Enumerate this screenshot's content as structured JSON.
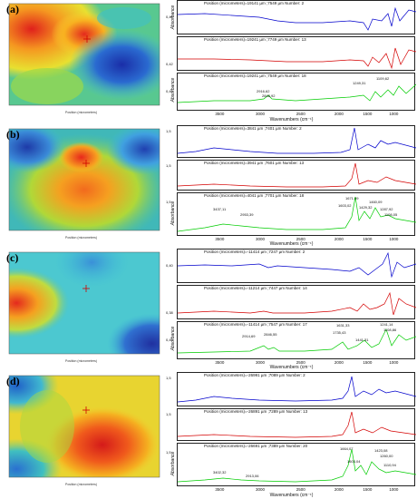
{
  "panels": [
    {
      "label": "(a)",
      "map": {
        "x_label": "Position (micrometers)",
        "y_label": "Position (micrometers)"
      },
      "spectra": [
        {
          "position": "Position (micrometers)=19141 µm ;7549 µm Number: 2",
          "color": "#0000cc",
          "ytick": "0,46"
        },
        {
          "position": "Position (micrometers)=19241 µm ;7749 µm Number: 13",
          "color": "#d40000",
          "ytick": "0,42"
        },
        {
          "position": "Position (micrometers)=19241 µm ;7549 µm Number: 18",
          "color": "#00cc00",
          "ytick": "0,40"
        }
      ],
      "peaks": [
        "2916,62",
        "2848,92",
        "1249,31",
        "1109,62"
      ],
      "x_ticks": [
        "3500",
        "3000",
        "2500",
        "2000",
        "1500",
        "1000"
      ],
      "x_label": "Wavenumbers (cm⁻¹)",
      "y_label": "Absorbance"
    },
    {
      "label": "(b)",
      "map": {
        "x_label": "Position (micrometers)",
        "y_label": "Position (micrometers)"
      },
      "spectra": [
        {
          "position": "Position (micrometers)=3841 µm ;7401 µm Number: 2",
          "color": "#0000cc",
          "ytick": "1,5"
        },
        {
          "position": "Position (micrometers)=3941 µm ;7601 µm Number: 13",
          "color": "#d40000",
          "ytick": "1,5"
        },
        {
          "position": "Position (micrometers)=4041 µm ;7701 µm Number: 18",
          "color": "#00cc00",
          "ytick": "1,5"
        }
      ],
      "peaks": [
        "3437,11",
        "2953,39",
        "1671,09",
        "1603,02",
        "1460,09",
        "1429,32",
        "1287,92",
        "1108,05"
      ],
      "x_ticks": [
        "3500",
        "3000",
        "2500",
        "2000",
        "1500",
        "1000"
      ],
      "x_label": "Wavenumbers (cm⁻¹)",
      "y_label": "Absorbance"
    },
    {
      "label": "(c)",
      "map": {
        "x_label": "Position (micrometers)",
        "y_label": "Position (micrometers)"
      },
      "spectra": [
        {
          "position": "Position (micrometers)=-11414 µm ;7247 µm Number: 2",
          "color": "#0000cc",
          "ytick": "0,40"
        },
        {
          "position": "Position (micrometers)=-11214 µm ;7447 µm Number: 14",
          "color": "#d40000",
          "ytick": "0,38"
        },
        {
          "position": "Position (micrometers)=-11414 µm ;7547 µm Number: 17",
          "color": "#00cc00",
          "ytick": "0,40"
        }
      ],
      "peaks": [
        "2914,69",
        "2846,55",
        "1631,33",
        "1735,43",
        "1441,31",
        "1241,14",
        "1108,86"
      ],
      "x_ticks": [
        "3500",
        "3000",
        "2500",
        "2000",
        "1500",
        "1000"
      ],
      "x_label": "Wavenumbers (cm⁻¹)",
      "y_label": "Absorbance"
    },
    {
      "label": "(d)",
      "map": {
        "x_label": "Position (micrometers)",
        "y_label": "Position (micrometers)"
      },
      "spectra": [
        {
          "position": "Position (micrometers)=-26991 µm ;7089 µm Number: 2",
          "color": "#0000cc",
          "ytick": "1,5"
        },
        {
          "position": "Position (micrometers)=-26891 µm ;7289 µm Number: 13",
          "color": "#d40000",
          "ytick": "1,5"
        },
        {
          "position": "Position (micrometers)=-26691 µm ;7389 µm Number: 20",
          "color": "#00cc00",
          "ytick": "1,5"
        }
      ],
      "peaks": [
        "3402,32",
        "2913,06",
        "1664,07",
        "1603,04",
        "1423,08",
        "1260,00",
        "1110,94"
      ],
      "x_ticks": [
        "3500",
        "3000",
        "2500",
        "2000",
        "1500",
        "1000"
      ],
      "x_label": "Wavenumbers (cm⁻¹)",
      "y_label": "Absorbance"
    }
  ]
}
